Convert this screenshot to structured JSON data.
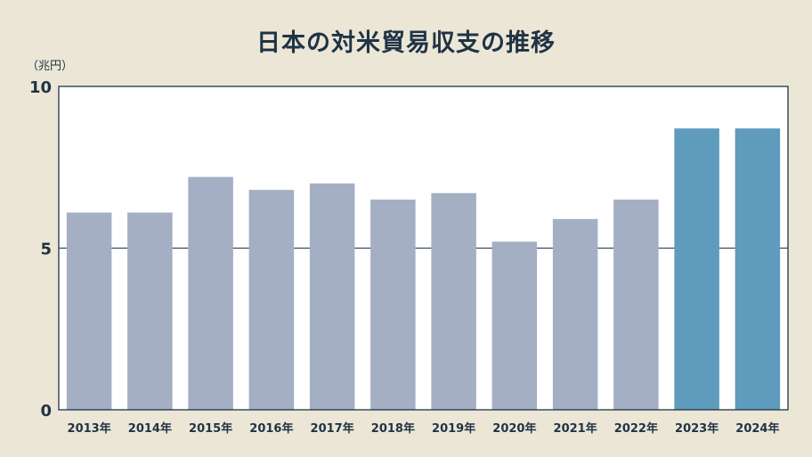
{
  "title": "日本の対米貿易収支の推移",
  "chart_data": {
    "type": "bar",
    "unit_label": "（兆円）",
    "categories": [
      "2013年",
      "2014年",
      "2015年",
      "2016年",
      "2017年",
      "2018年",
      "2019年",
      "2020年",
      "2021年",
      "2022年",
      "2023年",
      "2024年"
    ],
    "values": [
      6.1,
      6.1,
      7.2,
      6.8,
      7.0,
      6.5,
      6.7,
      5.2,
      5.9,
      6.5,
      8.7,
      8.7
    ],
    "highlight_categories": [
      "2023年",
      "2024年"
    ],
    "ylim": [
      0,
      10
    ],
    "yticks": [
      0,
      5,
      10
    ],
    "grid": true,
    "colors": {
      "bar": "#a4afc4",
      "bar_highlight": "#5f9bbd",
      "plot_bg": "#ffffff",
      "axis": "#1f3345",
      "background": "#ece6d6"
    }
  }
}
